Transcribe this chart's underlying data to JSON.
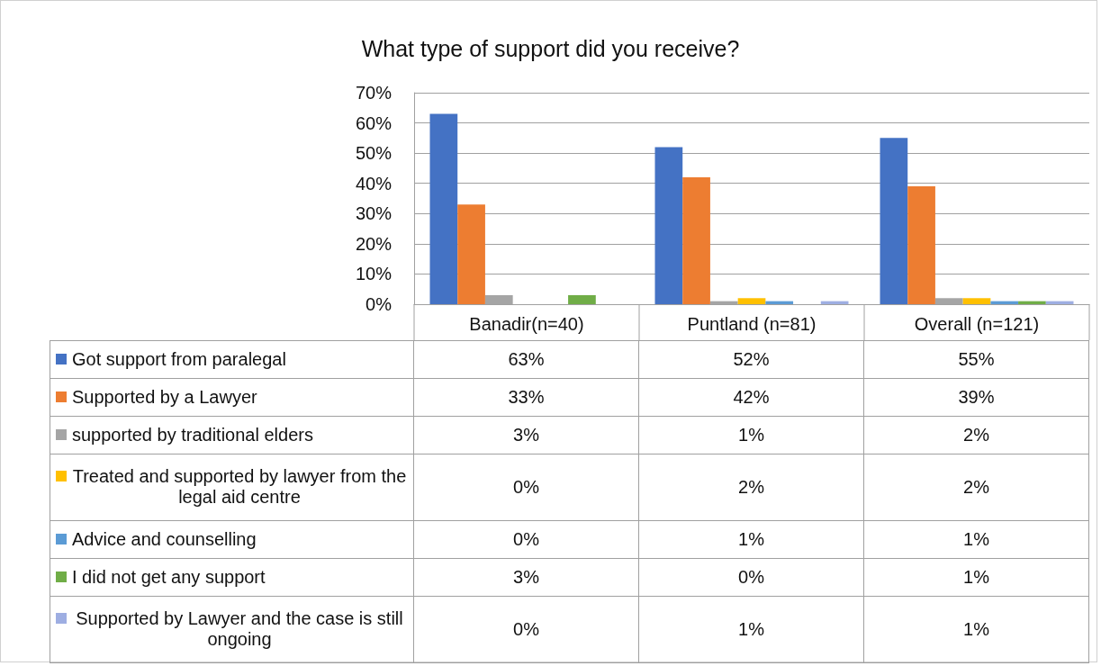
{
  "chart_data": {
    "type": "bar",
    "title": "What type of support did you receive?",
    "categories": [
      "Banadir(n=40)",
      "Puntland (n=81)",
      "Overall (n=121)"
    ],
    "series": [
      {
        "name": "Got support from  paralegal",
        "color": "#4472c4",
        "values": [
          63,
          52,
          55
        ],
        "value_labels": [
          "63%",
          "52%",
          "55%"
        ]
      },
      {
        "name": "Supported by a Lawyer",
        "color": "#ed7d31",
        "values": [
          33,
          42,
          39
        ],
        "value_labels": [
          "33%",
          "42%",
          "39%"
        ]
      },
      {
        "name": "supported by traditional elders",
        "color": "#a5a5a5",
        "values": [
          3,
          1,
          2
        ],
        "value_labels": [
          "3%",
          "1%",
          "2%"
        ]
      },
      {
        "name": "Treated and supported by lawyer from the legal aid centre",
        "color": "#ffc000",
        "values": [
          0,
          2,
          2
        ],
        "value_labels": [
          "0%",
          "2%",
          "2%"
        ]
      },
      {
        "name": "Advice and counselling",
        "color": "#5b9bd5",
        "values": [
          0,
          1,
          1
        ],
        "value_labels": [
          "0%",
          "1%",
          "1%"
        ]
      },
      {
        "name": "I did not  get any support",
        "color": "#70ad47",
        "values": [
          3,
          0,
          1
        ],
        "value_labels": [
          "3%",
          "0%",
          "1%"
        ]
      },
      {
        "name": "Supported by Lawyer and the case is still ongoing",
        "color": "#9eaee2",
        "values": [
          0,
          1,
          1
        ],
        "value_labels": [
          "0%",
          "1%",
          "1%"
        ]
      }
    ],
    "ylim": [
      0,
      70
    ],
    "yticks": [
      {
        "value": 0,
        "label": "0%"
      },
      {
        "value": 10,
        "label": "10%"
      },
      {
        "value": 20,
        "label": "20%"
      },
      {
        "value": 30,
        "label": "30%"
      },
      {
        "value": 40,
        "label": "40%"
      },
      {
        "value": 50,
        "label": "50%"
      },
      {
        "value": 60,
        "label": "60%"
      },
      {
        "value": 70,
        "label": "70%"
      }
    ],
    "grid": "y",
    "legend": "bottom"
  }
}
